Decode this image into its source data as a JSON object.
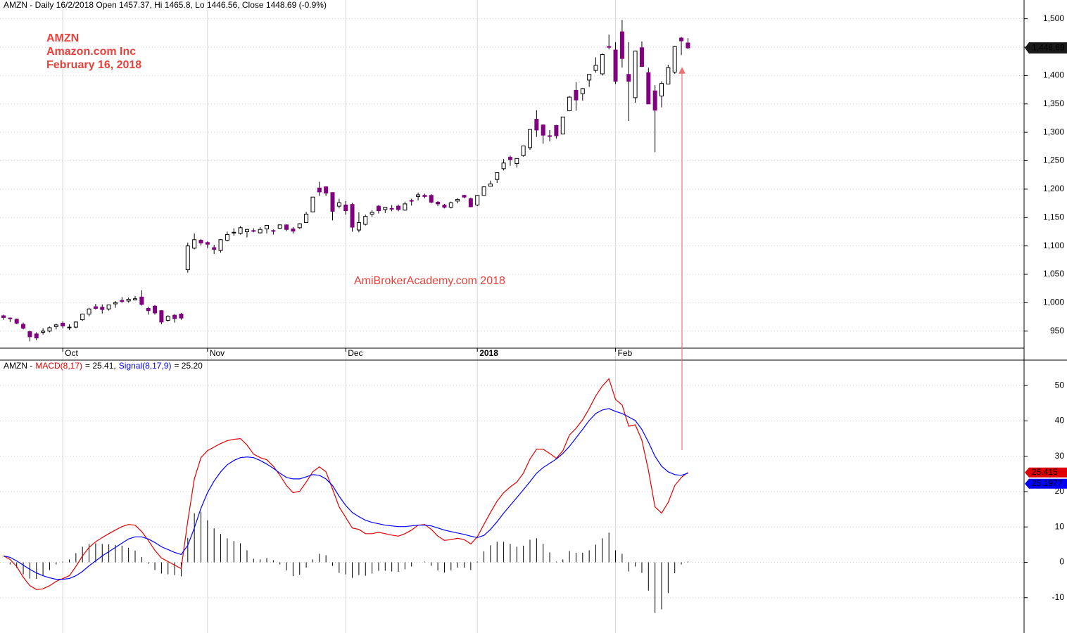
{
  "header": "AMZN - Daily 16/2/2018 Open 1457.37, Hi 1465.8, Lo 1446.56, Close 1448.69 (-0.9%)",
  "annotations": [
    "AMZN",
    "Amazon.com Inc",
    "February 16, 2018"
  ],
  "watermark": "AmiBrokerAcademy.com  2018",
  "chart_data": [
    {
      "type": "candlestick",
      "categories": [
        null,
        null,
        null,
        null,
        null,
        null,
        null,
        null,
        null,
        "Oct",
        null,
        null,
        null,
        null,
        null,
        null,
        null,
        null,
        null,
        null,
        null,
        null,
        null,
        null,
        null,
        null,
        null,
        null,
        null,
        null,
        null,
        "Nov",
        null,
        null,
        null,
        null,
        null,
        null,
        null,
        null,
        null,
        null,
        null,
        null,
        null,
        null,
        null,
        null,
        null,
        null,
        null,
        null,
        "Dec",
        null,
        null,
        null,
        null,
        null,
        null,
        null,
        null,
        null,
        null,
        null,
        null,
        null,
        null,
        null,
        null,
        null,
        null,
        null,
        "2018",
        null,
        null,
        null,
        null,
        null,
        null,
        null,
        null,
        null,
        null,
        null,
        null,
        null,
        null,
        null,
        null,
        null,
        null,
        null,
        null,
        "Feb",
        null,
        null,
        null,
        null,
        null,
        null,
        null,
        null,
        null,
        null,
        null
      ],
      "open": [
        977,
        973,
        971,
        962,
        949,
        945,
        948,
        950,
        958,
        964,
        956,
        957,
        970,
        980,
        993,
        992,
        989,
        998,
        1004,
        1003,
        1005,
        1010,
        990,
        994,
        986,
        969,
        978,
        980,
        1058,
        1096,
        1110,
        1106,
        1097,
        1092,
        1110,
        1124,
        1122,
        1125,
        1127,
        1123,
        1130,
        1127,
        1131,
        1137,
        1130,
        1132,
        1141,
        1160,
        1202,
        1204,
        1194,
        1170,
        1172,
        1173,
        1128,
        1138,
        1156,
        1170,
        1164,
        1166,
        1170,
        1163,
        1180,
        1187,
        1189,
        1189,
        1177,
        1172,
        1168,
        1179,
        1189,
        1183,
        1172,
        1189,
        1205,
        1217,
        1236,
        1256,
        1245,
        1259,
        1273,
        1323,
        1313,
        1294,
        1312,
        1297,
        1338,
        1374,
        1368,
        1392,
        1409,
        1403,
        1451,
        1445,
        1477,
        1402,
        1361,
        1449,
        1405,
        1373,
        1364,
        1385,
        1406,
        1466,
        1457.37
      ],
      "high": [
        979,
        974,
        972,
        965,
        951,
        948,
        955,
        958,
        963,
        967,
        962,
        967,
        981,
        991,
        998,
        997,
        996,
        1003,
        1010,
        1009,
        1012,
        1022,
        993,
        996,
        987,
        978,
        980,
        982,
        1106,
        1122,
        1112,
        1108,
        1102,
        1112,
        1125,
        1131,
        1135,
        1130,
        1131,
        1133,
        1137,
        1129,
        1138,
        1138,
        1133,
        1140,
        1160,
        1186,
        1213,
        1205,
        1194,
        1183,
        1179,
        1176,
        1159,
        1155,
        1163,
        1172,
        1169,
        1172,
        1173,
        1178,
        1183,
        1194,
        1192,
        1191,
        1179,
        1174,
        1178,
        1184,
        1190,
        1185,
        1190,
        1205,
        1215,
        1229,
        1253,
        1259,
        1254,
        1276,
        1305,
        1339,
        1314,
        1304,
        1313,
        1327,
        1364,
        1388,
        1378,
        1402,
        1432,
        1439,
        1472,
        1459,
        1498,
        1459,
        1444,
        1460,
        1414,
        1383,
        1390,
        1419,
        1452,
        1468,
        1465.8
      ],
      "low": [
        970,
        966,
        962,
        953,
        932,
        934,
        944,
        948,
        953,
        955,
        952,
        955,
        968,
        976,
        988,
        981,
        986,
        991,
        1000,
        1000,
        1004,
        995,
        979,
        979,
        962,
        967,
        965,
        970,
        1053,
        1094,
        1101,
        1096,
        1086,
        1088,
        1108,
        1118,
        1120,
        1115,
        1124,
        1122,
        1122,
        1120,
        1131,
        1126,
        1122,
        1130,
        1141,
        1160,
        1188,
        1188,
        1145,
        1166,
        1155,
        1125,
        1124,
        1136,
        1151,
        1157,
        1158,
        1161,
        1161,
        1162,
        1171,
        1180,
        1184,
        1175,
        1170,
        1166,
        1166,
        1175,
        1184,
        1168,
        1170,
        1189,
        1205,
        1211,
        1233,
        1241,
        1238,
        1257,
        1269,
        1292,
        1280,
        1284,
        1289,
        1297,
        1337,
        1338,
        1356,
        1380,
        1405,
        1400,
        1446,
        1385,
        1414,
        1320,
        1352,
        1415,
        1350,
        1265,
        1344,
        1385,
        1403,
        1436,
        1446.56
      ],
      "close": [
        974,
        972,
        964,
        955,
        940,
        938,
        950,
        956,
        961,
        959,
        957,
        966,
        980,
        989,
        990,
        988,
        996,
        1000,
        1002,
        1006,
        1007,
        997,
        986,
        982,
        966,
        976,
        972,
        973,
        1100,
        1111,
        1105,
        1103,
        1094,
        1111,
        1120,
        1124,
        1132,
        1129,
        1126,
        1129,
        1136,
        1126,
        1137,
        1129,
        1126,
        1139,
        1156,
        1186,
        1195,
        1193,
        1161,
        1176,
        1162,
        1133,
        1141,
        1152,
        1159,
        1162,
        1168,
        1165,
        1164,
        1174,
        1179,
        1190,
        1187,
        1177,
        1174,
        1168,
        1176,
        1182,
        1186,
        1169,
        1189,
        1204,
        1209,
        1229,
        1246,
        1252,
        1254,
        1276,
        1305,
        1304,
        1295,
        1293,
        1294,
        1327,
        1362,
        1357,
        1377,
        1402,
        1418,
        1437,
        1450,
        1390,
        1430,
        1390,
        1443,
        1416,
        1350,
        1339,
        1386,
        1414,
        1451,
        1461,
        1448.69
      ],
      "up_color": "#ffffff",
      "down_color": "#800080",
      "ylim": [
        920,
        1533
      ],
      "yticks": [
        950,
        {
          "value": 1000,
          "label": "1,000"
        },
        {
          "value": 1050,
          "label": "1,050"
        },
        {
          "value": 1100,
          "label": "1,100"
        },
        {
          "value": 1150,
          "label": "1,150"
        },
        {
          "value": 1200,
          "label": "1,200"
        },
        {
          "value": 1250,
          "label": "1,250"
        },
        {
          "value": 1300,
          "label": "1,300"
        },
        {
          "value": 1350,
          "label": "1,350"
        },
        {
          "value": 1400,
          "label": "1,400"
        },
        {
          "value": 1450,
          "label": "1,450"
        },
        {
          "value": 1500,
          "label": "1,500"
        }
      ],
      "grid": true,
      "last_label": "1,448.69"
    },
    {
      "type": "macd",
      "title": "AMZN -",
      "series": [
        {
          "name": "MACD(8,17)",
          "color": "#e00000",
          "legend_value": "= 25.41,",
          "tag_label": "25.415",
          "values": [
            1.8,
            0.8,
            -1.2,
            -4.2,
            -6.6,
            -7.7,
            -7.5,
            -6.6,
            -5.4,
            -4.6,
            -3.8,
            -1.2,
            1.8,
            4.2,
            5.8,
            7.0,
            8.1,
            9.1,
            10.1,
            10.7,
            10.5,
            8.7,
            6.2,
            3.4,
            1.2,
            0.2,
            -0.8,
            -1.8,
            11.7,
            23.6,
            29.6,
            31.6,
            32.6,
            33.6,
            34.4,
            34.8,
            35.0,
            33.2,
            30.6,
            29.6,
            29.0,
            27.2,
            24.6,
            21.7,
            19.7,
            20.1,
            22.7,
            25.6,
            27.0,
            25.6,
            20.7,
            15.7,
            12.7,
            9.7,
            9.3,
            8.1,
            8.1,
            8.5,
            8.1,
            7.7,
            7.4,
            8.1,
            9.1,
            10.5,
            10.7,
            9.3,
            7.4,
            6.2,
            6.4,
            6.8,
            6.4,
            5.2,
            7.2,
            10.7,
            14.1,
            17.3,
            19.7,
            21.3,
            22.7,
            25.2,
            29.2,
            32.0,
            32.0,
            30.8,
            29.4,
            31.6,
            36.0,
            37.9,
            40.3,
            43.5,
            47.1,
            49.9,
            51.9,
            46.1,
            44.5,
            38.5,
            38.9,
            34.6,
            26.0,
            15.7,
            13.9,
            16.9,
            21.7,
            24.0,
            25.415
          ]
        },
        {
          "name": "Signal(8,17,9)",
          "color": "#0000ff",
          "legend_value": "= 25.20",
          "tag_label": "25.1977",
          "values": [
            1.8,
            1.4,
            0.4,
            -0.8,
            -2.0,
            -3.0,
            -3.8,
            -4.4,
            -4.8,
            -4.8,
            -4.6,
            -3.8,
            -2.6,
            -1.0,
            0.4,
            1.8,
            3.0,
            4.2,
            5.4,
            6.6,
            7.2,
            7.2,
            6.6,
            5.6,
            4.4,
            3.6,
            2.8,
            2.2,
            4.8,
            9.7,
            15.3,
            19.7,
            23.0,
            25.6,
            27.6,
            28.8,
            29.6,
            29.8,
            29.6,
            28.8,
            27.8,
            26.6,
            25.2,
            24.0,
            23.6,
            23.6,
            24.2,
            24.8,
            24.6,
            23.6,
            21.7,
            18.7,
            16.1,
            14.1,
            12.9,
            11.9,
            11.3,
            10.9,
            10.5,
            10.3,
            10.1,
            10.1,
            10.3,
            10.5,
            10.5,
            10.3,
            9.7,
            9.1,
            8.7,
            8.3,
            7.9,
            7.4,
            7.0,
            7.6,
            9.3,
            11.5,
            13.9,
            16.1,
            18.3,
            20.5,
            22.8,
            25.2,
            26.8,
            28.0,
            29.2,
            30.8,
            32.8,
            35.2,
            37.6,
            40.1,
            42.1,
            43.1,
            43.5,
            42.7,
            42.1,
            41.1,
            40.1,
            37.6,
            34.0,
            30.0,
            27.2,
            25.6,
            24.8,
            24.6,
            25.1977
          ]
        }
      ],
      "histogram": {
        "color": "#000000",
        "values": [
          0,
          -0.6,
          -1.6,
          -3.4,
          -4.6,
          -4.7,
          -3.7,
          -2.2,
          -0.6,
          0.2,
          0.8,
          2.6,
          4.4,
          5.2,
          5.4,
          5.2,
          5.1,
          4.9,
          4.7,
          4.1,
          3.3,
          1.5,
          -0.4,
          -2.2,
          -3.2,
          -3.4,
          -3.6,
          -4.0,
          6.9,
          13.9,
          14.3,
          11.9,
          9.6,
          8.0,
          6.8,
          6.0,
          5.4,
          3.4,
          1.0,
          0.8,
          1.2,
          0.6,
          -0.6,
          -2.3,
          -3.9,
          -3.5,
          -1.5,
          0.8,
          2.4,
          2.0,
          -1.0,
          -3.0,
          -3.4,
          -4.4,
          -3.6,
          -3.8,
          -3.2,
          -2.4,
          -2.4,
          -2.6,
          -2.7,
          -2.0,
          -1.2,
          0.0,
          0.2,
          -1.0,
          -2.3,
          -2.9,
          -2.3,
          -1.5,
          -1.5,
          -2.2,
          0.2,
          3.1,
          4.8,
          5.8,
          5.8,
          5.2,
          4.4,
          4.7,
          6.4,
          6.8,
          5.2,
          2.8,
          0.2,
          0.8,
          3.2,
          2.7,
          2.7,
          3.4,
          5.0,
          6.8,
          8.4,
          3.4,
          2.4,
          -2.6,
          -1.2,
          -3.0,
          -8.0,
          -14.3,
          -13.3,
          -8.7,
          -3.1,
          -0.6,
          0.22
        ]
      },
      "ylim": [
        -20,
        57
      ],
      "yticks": [
        -10,
        0,
        10,
        20,
        30,
        40,
        50
      ],
      "grid": true
    }
  ]
}
